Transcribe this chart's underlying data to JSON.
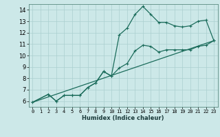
{
  "title": "",
  "xlabel": "Humidex (Indice chaleur)",
  "background_color": "#cce8e8",
  "line_color": "#1a6b5a",
  "grid_color": "#aacfcf",
  "xlim": [
    -0.5,
    23.5
  ],
  "ylim": [
    5.5,
    14.5
  ],
  "xticks": [
    0,
    1,
    2,
    3,
    4,
    5,
    6,
    7,
    8,
    9,
    10,
    11,
    12,
    13,
    14,
    15,
    16,
    17,
    18,
    19,
    20,
    21,
    22,
    23
  ],
  "yticks": [
    6,
    7,
    8,
    9,
    10,
    11,
    12,
    13,
    14
  ],
  "line1_x": [
    0,
    2,
    3,
    4,
    5,
    6,
    7,
    8,
    9,
    10,
    11,
    12,
    13,
    14,
    15,
    16,
    17,
    18,
    19,
    20,
    21,
    22,
    23
  ],
  "line1_y": [
    5.9,
    6.6,
    6.0,
    6.5,
    6.5,
    6.5,
    7.2,
    7.6,
    8.6,
    8.2,
    11.8,
    12.4,
    13.6,
    14.3,
    13.6,
    12.9,
    12.9,
    12.6,
    12.5,
    12.6,
    13.0,
    13.1,
    11.3
  ],
  "line2_x": [
    0,
    2,
    3,
    4,
    5,
    6,
    7,
    8,
    9,
    10,
    11,
    12,
    13,
    14,
    15,
    16,
    17,
    18,
    19,
    20,
    21,
    22,
    23
  ],
  "line2_y": [
    5.9,
    6.6,
    6.0,
    6.5,
    6.5,
    6.5,
    7.2,
    7.6,
    8.6,
    8.2,
    8.9,
    9.3,
    10.4,
    10.9,
    10.8,
    10.3,
    10.5,
    10.5,
    10.5,
    10.5,
    10.8,
    10.9,
    11.3
  ],
  "line3_x": [
    0,
    23
  ],
  "line3_y": [
    5.9,
    11.3
  ],
  "xlabel_fontsize": 6,
  "xlabel_fontweight": "bold",
  "tick_fontsize": 5,
  "ytick_fontsize": 6
}
